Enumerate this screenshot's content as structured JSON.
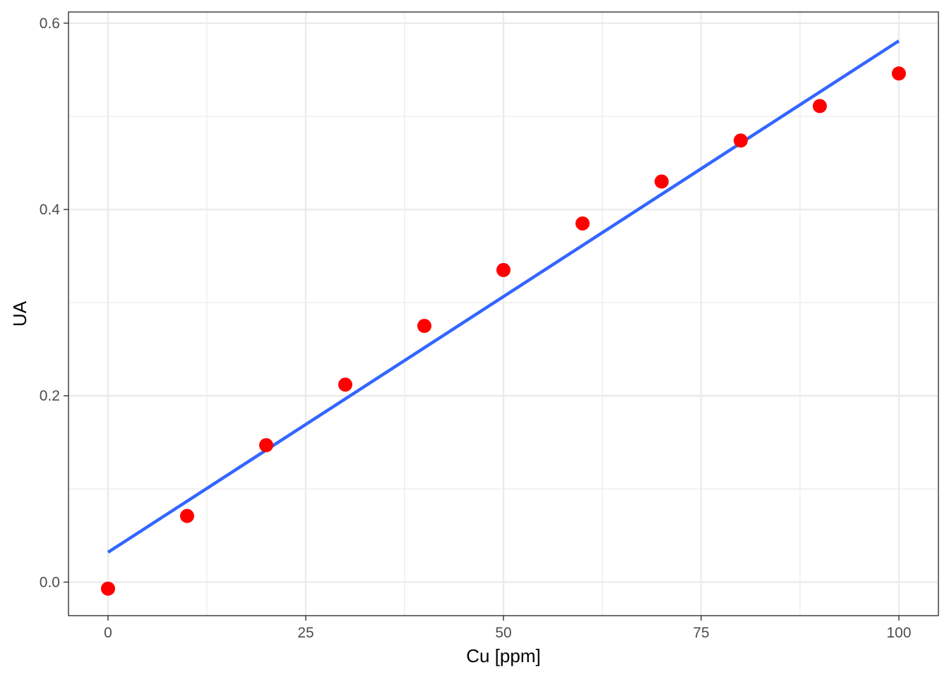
{
  "chart_data": {
    "type": "scatter",
    "title": "",
    "xlabel": "Cu [ppm]",
    "ylabel": "UA",
    "xlim": [
      -5,
      105
    ],
    "ylim": [
      -0.036,
      0.612
    ],
    "x_ticks": [
      {
        "value": 0,
        "label": "0"
      },
      {
        "value": 25,
        "label": "25"
      },
      {
        "value": 50,
        "label": "50"
      },
      {
        "value": 75,
        "label": "75"
      },
      {
        "value": 100,
        "label": "100"
      }
    ],
    "y_ticks": [
      {
        "value": 0.0,
        "label": "0.0"
      },
      {
        "value": 0.2,
        "label": "0.2"
      },
      {
        "value": 0.4,
        "label": "0.4"
      },
      {
        "value": 0.6,
        "label": "0.6"
      }
    ],
    "x_minor_gridlines": [
      12.5,
      37.5,
      62.5,
      87.5
    ],
    "y_minor_gridlines": [
      0.1,
      0.3,
      0.5
    ],
    "grid": true,
    "legend": "none",
    "series": [
      {
        "kind": "points",
        "color": "#ff0000",
        "x": [
          0,
          10,
          20,
          30,
          40,
          50,
          60,
          70,
          80,
          90,
          100
        ],
        "y": [
          -0.007,
          0.071,
          0.147,
          0.212,
          0.275,
          0.335,
          0.385,
          0.43,
          0.474,
          0.511,
          0.546
        ]
      },
      {
        "kind": "fit-line",
        "color": "#3366ff",
        "x": [
          0,
          100
        ],
        "y": [
          0.032,
          0.581
        ]
      }
    ]
  }
}
